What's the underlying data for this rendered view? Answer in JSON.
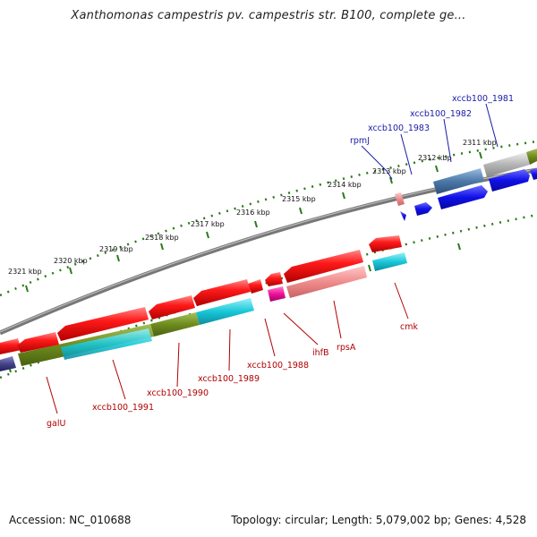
{
  "title": "Xanthomonas campestris pv. campestris str. B100, complete ge...",
  "footer": {
    "accession": "Accession: NC_010688",
    "summary": "Topology: circular; Length: 5,079,002 bp; Genes: 4,528"
  },
  "scale_labels": [
    "2311 kbp",
    "2312 kbp",
    "2313 kbp",
    "2314 kbp",
    "2315 kbp",
    "2316 kbp",
    "2317 kbp",
    "2318 kbp",
    "2319 kbp",
    "2320 kbp",
    "2321 kbp"
  ],
  "gene_labels_top": [
    "xccb100_1981",
    "xccb100_1982",
    "xccb100_1983",
    "rpmJ"
  ],
  "gene_labels_bottom": [
    "cmk",
    "rpsA",
    "ihfB",
    "xccb100_1988",
    "xccb100_1989",
    "xccb100_1990",
    "xccb100_1991",
    "galU"
  ],
  "colors": {
    "red": "#ee1111",
    "pink": "#f08c8c",
    "magenta": "#ee1199",
    "cyan": "#18c8d8",
    "olive": "#6e8c1e",
    "blue": "#1010e8",
    "steel": "#4c78a8",
    "grey": "#b4b4b4",
    "navy": "#444488",
    "backbone": "#888888",
    "tick_green": "#2a7a1a",
    "label_red": "#b00000",
    "label_blue": "#1a1aa8"
  }
}
